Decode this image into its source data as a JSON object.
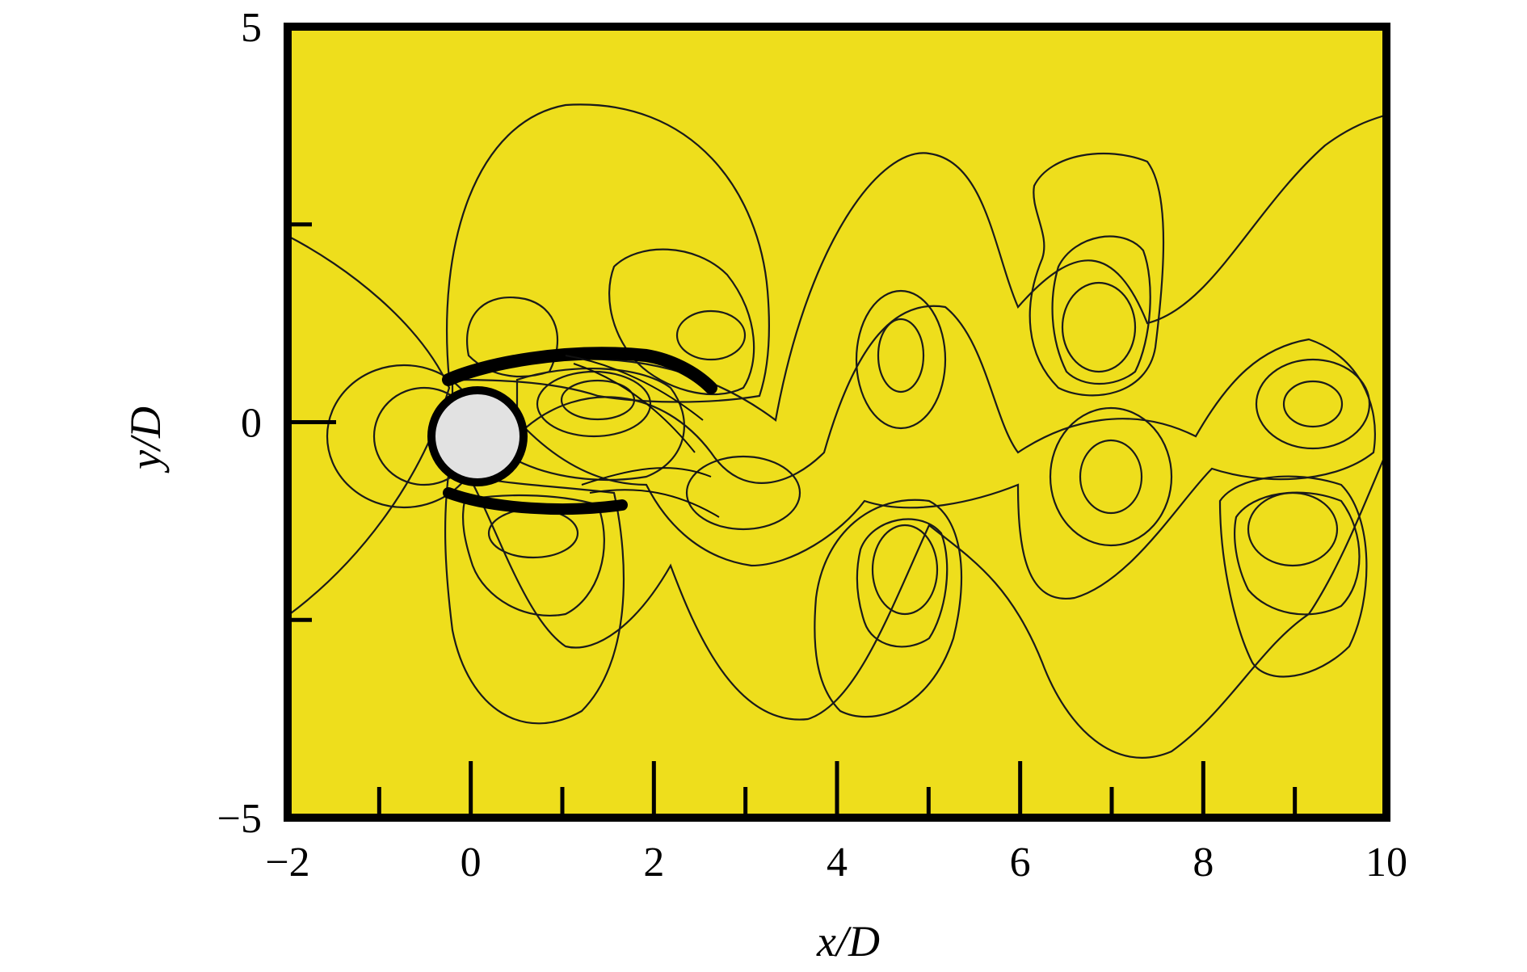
{
  "chart_data": {
    "type": "heatmap",
    "title": "",
    "xlabel": "x/D",
    "ylabel": "y/D",
    "xlim": [
      -2,
      10
    ],
    "ylim": [
      -5,
      5
    ],
    "x_ticks": [
      -2,
      0,
      2,
      4,
      6,
      8,
      10
    ],
    "y_ticks": [
      -5,
      0,
      5
    ],
    "x_minor_ticks": [
      -1,
      1,
      3,
      5,
      7,
      9
    ],
    "y_minor_ticks": [
      -2.5,
      2.5
    ],
    "grid": false,
    "legend": "none",
    "cylinder": {
      "center": [
        0,
        0
      ],
      "diameter": 1
    },
    "colors": {
      "background": "#eede1c",
      "orange": "#f6a03d",
      "red_light": "#f2502d",
      "red_dark": "#e01f17",
      "yellow_green": "#d8e82c",
      "green_light": "#a6dc2a",
      "green": "#7ed321",
      "green_dark": "#5ec41c",
      "cyan": "#4fd9bf",
      "blue_light": "#2d6ee8",
      "blue": "#1d3fd6",
      "cylinder": "#e2e2e2"
    }
  }
}
